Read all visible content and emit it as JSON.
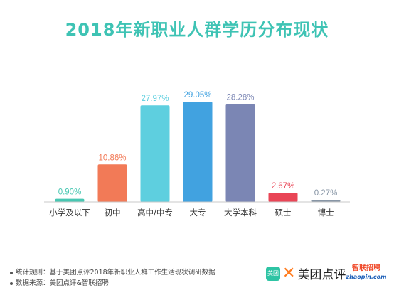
{
  "title": "2018年新职业人群学历分布现状",
  "chart_data": {
    "type": "bar",
    "categories": [
      "小学及以下",
      "初中",
      "高中/中专",
      "大专",
      "大学本科",
      "硕士",
      "博士"
    ],
    "values": [
      0.9,
      10.86,
      27.97,
      29.05,
      28.28,
      2.67,
      0.27
    ],
    "value_labels": [
      "0.90%",
      "10.86%",
      "27.97%",
      "29.05%",
      "28.28%",
      "2.67%",
      "0.27%"
    ],
    "colors": [
      "#48c7b2",
      "#f27a57",
      "#5ecfdf",
      "#41a2e0",
      "#7b86b4",
      "#e94556",
      "#8896a6"
    ],
    "ylim": [
      0,
      29.05
    ],
    "title": "2018年新职业人群学历分布现状",
    "xlabel": "",
    "ylabel": "",
    "grid": false
  },
  "notes": [
    "统计规则：基于美团点评2018年新职业人群工作生活现状调研数据",
    "数据来源：美团点评&智联招聘"
  ],
  "logos": {
    "meituan_badge": "美团",
    "meituan_text": "美团点评",
    "zhaopin_cn": "智联招聘",
    "zhaopin_en": "zhaopin.com"
  }
}
